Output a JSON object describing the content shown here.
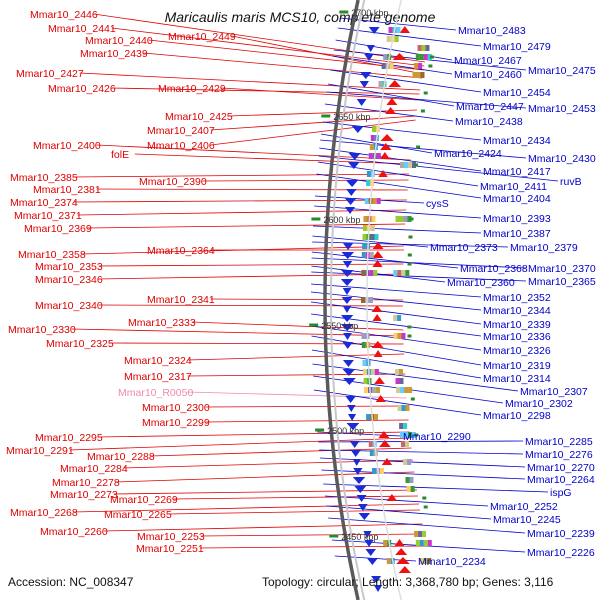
{
  "title": "Maricaulis maris MCS10, complete genome",
  "footer": {
    "accession": "Accession: NC_008347",
    "summary": "Topology: circular; Length: 3,368,780 bp; Genes: 3,116"
  },
  "colors": {
    "left_label": "#e00000",
    "right_label": "#0000cc",
    "rna_label": "#f08ab0",
    "backbone": "#8a8a8a",
    "tick_marker": "#2a8a2a"
  },
  "tick_labels": [
    "2700 kbp",
    "2650 kbp",
    "2600 kbp",
    "2550 kbp",
    "2500 kbp",
    "2450 kbp"
  ],
  "left_labels": [
    "Mmar10_2446",
    "Mmar10_2441",
    "Mmar10_2440",
    "Mmar10_2449",
    "Mmar10_2439",
    "Mmar10_2427",
    "Mmar10_2426",
    "Mmar10_2429",
    "Mmar10_2425",
    "Mmar10_2407",
    "Mmar10_2406",
    "Mmar10_2400",
    "folE",
    "Mmar10_2385",
    "Mmar10_2390",
    "Mmar10_2381",
    "Mmar10_2374",
    "Mmar10_2371",
    "Mmar10_2369",
    "Mmar10_2358",
    "Mmar10_2364",
    "Mmar10_2353",
    "Mmar10_2346",
    "Mmar10_2341",
    "Mmar10_2340",
    "Mmar10_2333",
    "Mmar10_2330",
    "Mmar10_2325",
    "Mmar10_2324",
    "Mmar10_2317",
    "Mmar10_R0050",
    "Mmar10_2300",
    "Mmar10_2299",
    "Mmar10_2295",
    "Mmar10_2291",
    "Mmar10_2288",
    "Mmar10_2284",
    "Mmar10_2278",
    "Mmar10_2273",
    "Mmar10_2269",
    "Mmar10_2268",
    "Mmar10_2265",
    "Mmar10_2260",
    "Mmar10_2253",
    "Mmar10_2251"
  ],
  "right_labels": [
    "Mmar10_2483",
    "Mmar10_2479",
    "Mmar10_2467",
    "Mmar10_2475",
    "Mmar10_2460",
    "Mmar10_2454",
    "Mmar10_2447",
    "Mmar10_2453",
    "Mmar10_2438",
    "Mmar10_2434",
    "Mmar10_2424",
    "Mmar10_2430",
    "Mmar10_2417",
    "ruvB",
    "Mmar10_2411",
    "Mmar10_2404",
    "cysS",
    "Mmar10_2393",
    "Mmar10_2387",
    "Mmar10_2373",
    "Mmar10_2379",
    "Mmar10_2368",
    "Mmar10_2370",
    "Mmar10_2360",
    "Mmar10_2365",
    "Mmar10_2352",
    "Mmar10_2344",
    "Mmar10_2339",
    "Mmar10_2336",
    "Mmar10_2326",
    "Mmar10_2319",
    "Mmar10_2314",
    "Mmar10_2307",
    "Mmar10_2302",
    "Mmar10_2298",
    "Mmar10_2290",
    "Mmar10_2285",
    "Mmar10_2276",
    "Mmar10_2270",
    "Mmar10_2264",
    "ispG",
    "Mmar10_2252",
    "Mmar10_2245",
    "Mmar10_2239",
    "Mmar10_2234",
    "Mmar10_2226"
  ]
}
